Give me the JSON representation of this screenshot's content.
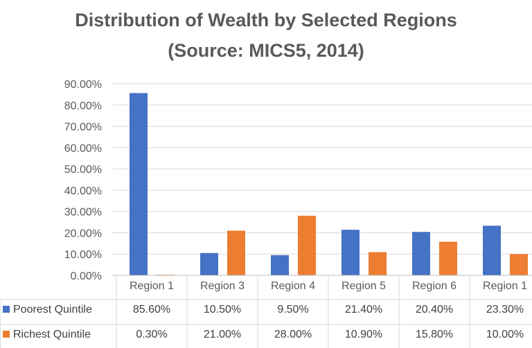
{
  "chart_data": {
    "type": "bar",
    "title": "Distribution of Wealth by Selected Regions",
    "subtitle": "(Source: MICS5, 2014)",
    "categories": [
      "Region 1",
      "Region 3",
      "Region 4",
      "Region 5",
      "Region 6",
      "Region 1"
    ],
    "series": [
      {
        "name": "Poorest Quintile",
        "color": "#4472c4",
        "values": [
          85.6,
          10.5,
          9.5,
          21.4,
          20.4,
          23.3
        ],
        "labels": [
          "85.60%",
          "10.50%",
          "9.50%",
          "21.40%",
          "20.40%",
          "23.30%"
        ]
      },
      {
        "name": "Richest Quintile",
        "color": "#ed7d31",
        "values": [
          0.3,
          21.0,
          28.0,
          10.9,
          15.8,
          10.0
        ],
        "labels": [
          "0.30%",
          "21.00%",
          "28.00%",
          "10.90%",
          "15.80%",
          "10.00%"
        ]
      }
    ],
    "ylim": [
      0,
      90
    ],
    "yticks": [
      "0.00%",
      "10.00%",
      "20.00%",
      "30.00%",
      "40.00%",
      "50.00%",
      "60.00%",
      "70.00%",
      "80.00%",
      "90.00%"
    ],
    "grid": true,
    "legend": "data-table"
  }
}
